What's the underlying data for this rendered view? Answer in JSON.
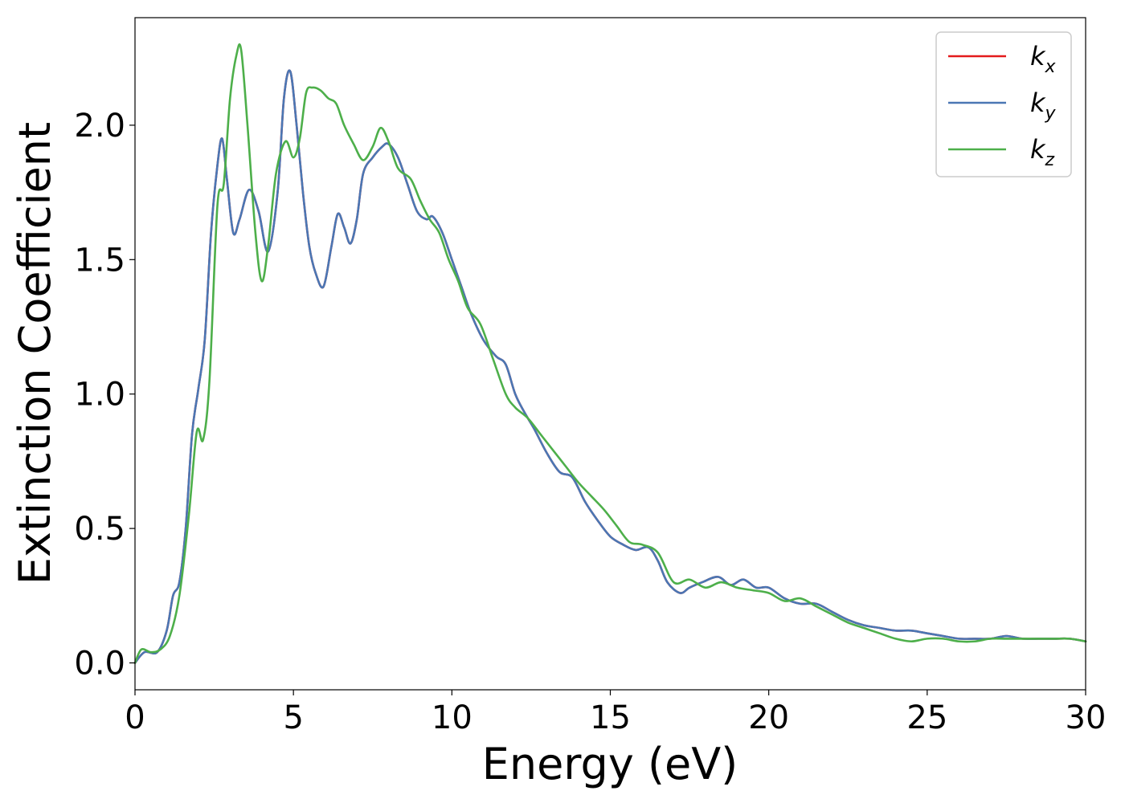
{
  "chart_data": {
    "type": "line",
    "title": "",
    "xlabel": "Energy (eV)",
    "ylabel": "Extinction Coefficient",
    "xlim": [
      0,
      30
    ],
    "ylim": [
      -0.1,
      2.4
    ],
    "xticks": [
      0,
      5,
      10,
      15,
      20,
      25,
      30
    ],
    "xtick_labels": [
      "0",
      "5",
      "10",
      "15",
      "20",
      "25",
      "30"
    ],
    "yticks": [
      0.0,
      0.5,
      1.0,
      1.5,
      2.0
    ],
    "ytick_labels": [
      "0.0",
      "0.5",
      "1.0",
      "1.5",
      "2.0"
    ],
    "grid": false,
    "legend_position": "top-right",
    "series": [
      {
        "name": "k",
        "subscript": "x",
        "color": "#e41a1c",
        "x": [
          0,
          0.3,
          0.7,
          1.0,
          1.2,
          1.4,
          1.6,
          1.8,
          2.0,
          2.2,
          2.4,
          2.6,
          2.75,
          2.9,
          3.1,
          3.3,
          3.6,
          3.9,
          4.2,
          4.5,
          4.7,
          4.9,
          5.1,
          5.3,
          5.5,
          5.7,
          5.95,
          6.2,
          6.4,
          6.6,
          6.8,
          7.0,
          7.2,
          7.5,
          7.8,
          8.0,
          8.3,
          8.6,
          8.9,
          9.2,
          9.4,
          9.7,
          10.0,
          10.3,
          10.6,
          11.0,
          11.4,
          11.7,
          12.0,
          12.3,
          12.6,
          13.0,
          13.4,
          13.8,
          14.2,
          14.6,
          15.0,
          15.4,
          15.8,
          16.2,
          16.5,
          16.8,
          17.2,
          17.5,
          17.9,
          18.4,
          18.8,
          19.2,
          19.6,
          20.0,
          20.5,
          21.0,
          21.5,
          22.0,
          22.5,
          23.0,
          23.5,
          24.0,
          24.5,
          25.0,
          25.5,
          26.0,
          26.5,
          27.0,
          27.5,
          28.0,
          28.5,
          29.0,
          29.5,
          30.0
        ],
        "y": [
          0.0,
          0.04,
          0.04,
          0.12,
          0.25,
          0.3,
          0.5,
          0.85,
          1.02,
          1.2,
          1.6,
          1.85,
          1.95,
          1.8,
          1.6,
          1.65,
          1.76,
          1.68,
          1.53,
          1.75,
          2.1,
          2.2,
          2.0,
          1.75,
          1.55,
          1.45,
          1.4,
          1.55,
          1.67,
          1.62,
          1.56,
          1.65,
          1.82,
          1.88,
          1.92,
          1.93,
          1.88,
          1.78,
          1.68,
          1.65,
          1.66,
          1.6,
          1.5,
          1.4,
          1.3,
          1.2,
          1.14,
          1.11,
          1.0,
          0.93,
          0.87,
          0.78,
          0.71,
          0.69,
          0.6,
          0.53,
          0.47,
          0.44,
          0.42,
          0.43,
          0.38,
          0.3,
          0.26,
          0.28,
          0.3,
          0.32,
          0.29,
          0.31,
          0.28,
          0.28,
          0.24,
          0.22,
          0.22,
          0.19,
          0.16,
          0.14,
          0.13,
          0.12,
          0.12,
          0.11,
          0.1,
          0.09,
          0.09,
          0.09,
          0.1,
          0.09,
          0.09,
          0.09,
          0.09,
          0.08
        ]
      },
      {
        "name": "k",
        "subscript": "y",
        "color": "#4a77b4",
        "x": [
          0,
          0.3,
          0.7,
          1.0,
          1.2,
          1.4,
          1.6,
          1.8,
          2.0,
          2.2,
          2.4,
          2.6,
          2.75,
          2.9,
          3.1,
          3.3,
          3.6,
          3.9,
          4.2,
          4.5,
          4.7,
          4.9,
          5.1,
          5.3,
          5.5,
          5.7,
          5.95,
          6.2,
          6.4,
          6.6,
          6.8,
          7.0,
          7.2,
          7.5,
          7.8,
          8.0,
          8.3,
          8.6,
          8.9,
          9.2,
          9.4,
          9.7,
          10.0,
          10.3,
          10.6,
          11.0,
          11.4,
          11.7,
          12.0,
          12.3,
          12.6,
          13.0,
          13.4,
          13.8,
          14.2,
          14.6,
          15.0,
          15.4,
          15.8,
          16.2,
          16.5,
          16.8,
          17.2,
          17.5,
          17.9,
          18.4,
          18.8,
          19.2,
          19.6,
          20.0,
          20.5,
          21.0,
          21.5,
          22.0,
          22.5,
          23.0,
          23.5,
          24.0,
          24.5,
          25.0,
          25.5,
          26.0,
          26.5,
          27.0,
          27.5,
          28.0,
          28.5,
          29.0,
          29.5,
          30.0
        ],
        "y": [
          0.0,
          0.04,
          0.04,
          0.12,
          0.25,
          0.3,
          0.5,
          0.85,
          1.02,
          1.2,
          1.6,
          1.85,
          1.95,
          1.8,
          1.6,
          1.65,
          1.76,
          1.68,
          1.53,
          1.75,
          2.1,
          2.2,
          2.0,
          1.75,
          1.55,
          1.45,
          1.4,
          1.55,
          1.67,
          1.62,
          1.56,
          1.65,
          1.82,
          1.88,
          1.92,
          1.93,
          1.88,
          1.78,
          1.68,
          1.65,
          1.66,
          1.6,
          1.5,
          1.4,
          1.3,
          1.2,
          1.14,
          1.11,
          1.0,
          0.93,
          0.87,
          0.78,
          0.71,
          0.69,
          0.6,
          0.53,
          0.47,
          0.44,
          0.42,
          0.43,
          0.38,
          0.3,
          0.26,
          0.28,
          0.3,
          0.32,
          0.29,
          0.31,
          0.28,
          0.28,
          0.24,
          0.22,
          0.22,
          0.19,
          0.16,
          0.14,
          0.13,
          0.12,
          0.12,
          0.11,
          0.1,
          0.09,
          0.09,
          0.09,
          0.1,
          0.09,
          0.09,
          0.09,
          0.09,
          0.08
        ]
      },
      {
        "name": "k",
        "subscript": "z",
        "color": "#4daf4a",
        "x": [
          0,
          0.2,
          0.5,
          0.8,
          1.1,
          1.4,
          1.7,
          1.95,
          2.15,
          2.35,
          2.6,
          2.8,
          3.0,
          3.2,
          3.35,
          3.55,
          3.8,
          4.0,
          4.2,
          4.45,
          4.75,
          5.0,
          5.2,
          5.4,
          5.6,
          5.85,
          6.1,
          6.35,
          6.6,
          6.9,
          7.2,
          7.5,
          7.75,
          8.0,
          8.3,
          8.7,
          9.0,
          9.3,
          9.6,
          9.9,
          10.2,
          10.5,
          10.9,
          11.3,
          11.7,
          12.0,
          12.4,
          12.8,
          13.2,
          13.6,
          14.0,
          14.4,
          14.8,
          15.2,
          15.6,
          16.0,
          16.5,
          17.0,
          17.5,
          18.0,
          18.5,
          19.0,
          19.5,
          20.0,
          20.5,
          21.0,
          21.5,
          22.0,
          22.5,
          23.0,
          23.5,
          24.0,
          24.5,
          25.0,
          25.5,
          26.0,
          26.5,
          27.0,
          27.5,
          28.0,
          28.5,
          29.0,
          29.5,
          30.0
        ],
        "y": [
          0.0,
          0.05,
          0.04,
          0.05,
          0.1,
          0.25,
          0.55,
          0.86,
          0.83,
          1.05,
          1.7,
          1.78,
          2.1,
          2.26,
          2.28,
          2.0,
          1.6,
          1.42,
          1.55,
          1.82,
          1.94,
          1.88,
          1.95,
          2.12,
          2.14,
          2.13,
          2.1,
          2.08,
          2.0,
          1.93,
          1.87,
          1.92,
          1.99,
          1.94,
          1.84,
          1.8,
          1.72,
          1.65,
          1.6,
          1.5,
          1.42,
          1.32,
          1.26,
          1.13,
          1.0,
          0.95,
          0.91,
          0.85,
          0.79,
          0.73,
          0.67,
          0.62,
          0.57,
          0.51,
          0.45,
          0.44,
          0.41,
          0.3,
          0.31,
          0.28,
          0.3,
          0.28,
          0.27,
          0.26,
          0.23,
          0.24,
          0.21,
          0.18,
          0.15,
          0.13,
          0.11,
          0.09,
          0.08,
          0.09,
          0.09,
          0.08,
          0.08,
          0.09,
          0.09,
          0.09,
          0.09,
          0.09,
          0.09,
          0.08
        ]
      }
    ]
  }
}
